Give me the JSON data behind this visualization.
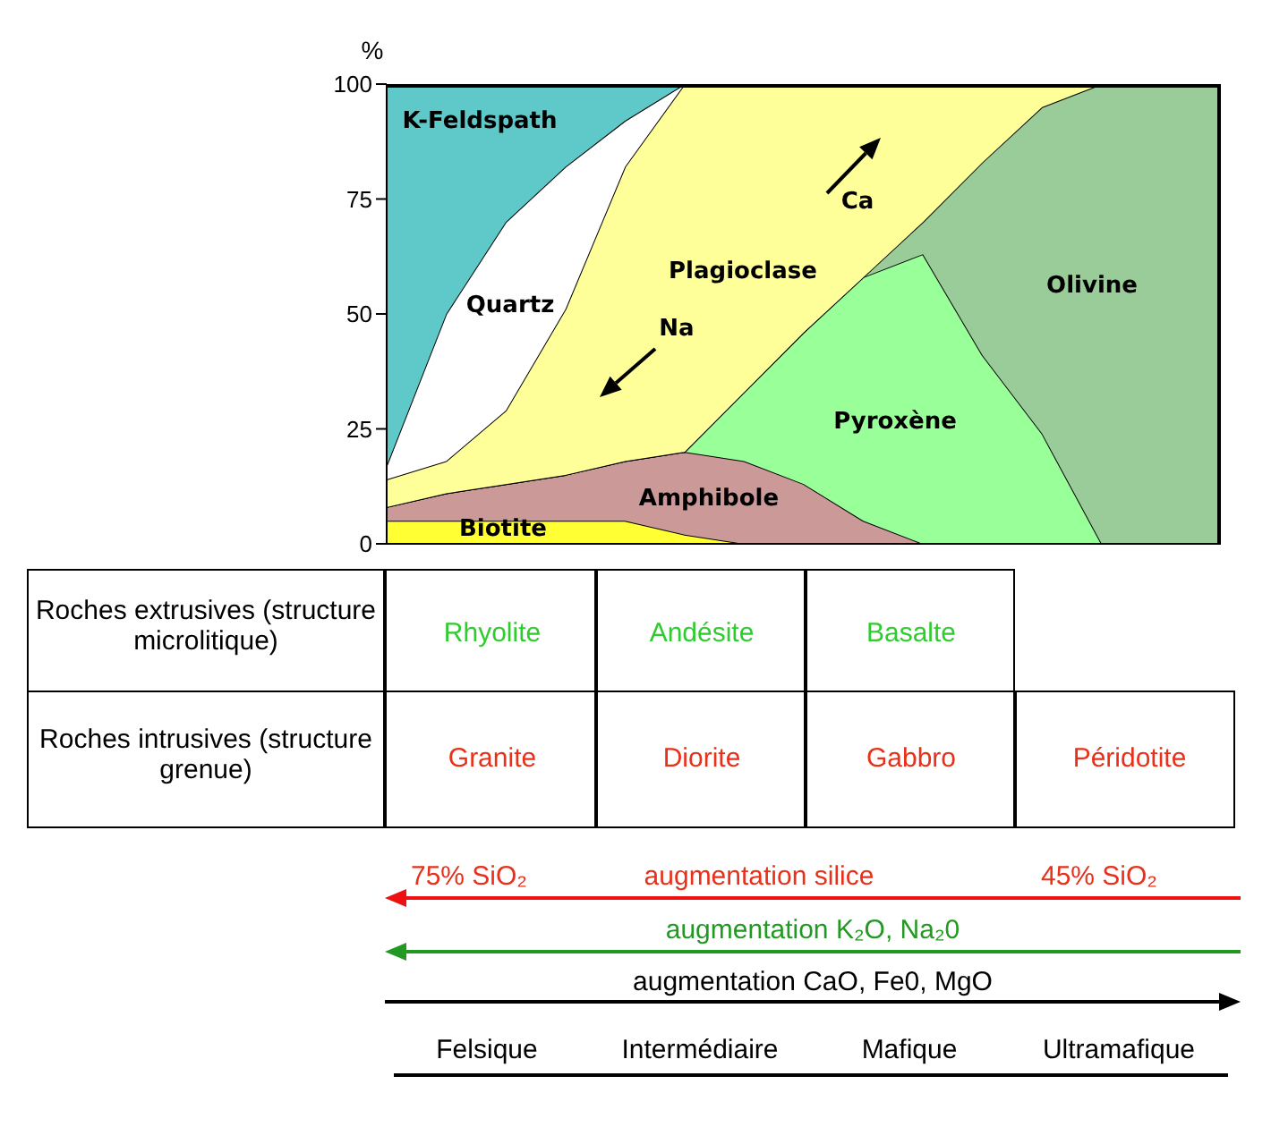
{
  "chart_data": {
    "type": "area",
    "stacked": true,
    "ylabel": "%",
    "ylim": [
      0,
      100
    ],
    "yticks": [
      0,
      25,
      50,
      75,
      100
    ],
    "categories": [
      null,
      null,
      null,
      null,
      null,
      null,
      null,
      null,
      null,
      null,
      null,
      null,
      null,
      null,
      null
    ],
    "series": [
      {
        "name": "Biotite",
        "color": "#ffff33",
        "values": [
          5,
          5,
          5,
          5,
          5,
          2,
          0,
          0,
          0,
          0,
          0,
          0,
          0,
          0,
          0
        ]
      },
      {
        "name": "Amphibole",
        "color": "#cc9999",
        "values": [
          3,
          6,
          8,
          10,
          13,
          18,
          18,
          13,
          5,
          0,
          0,
          0,
          0,
          0,
          0
        ]
      },
      {
        "name": "Pyroxène",
        "color": "#99ff99",
        "values": [
          0,
          0,
          0,
          0,
          0,
          0,
          15,
          33,
          53,
          63,
          41,
          24,
          0,
          0,
          0
        ]
      },
      {
        "name": "Olivine",
        "color": "#99cc99",
        "values": [
          0,
          0,
          0,
          0,
          0,
          0,
          0,
          0,
          0,
          7,
          42,
          71,
          100,
          100,
          100
        ]
      },
      {
        "name": "Plagioclase",
        "color": "#ffff99",
        "values": [
          6,
          7,
          16,
          36,
          64,
          80,
          67,
          54,
          42,
          30,
          17,
          5,
          0,
          0,
          0
        ]
      },
      {
        "name": "Quartz",
        "color": "#ffffff",
        "values": [
          3,
          32,
          41,
          31,
          10,
          0,
          0,
          0,
          0,
          0,
          0,
          0,
          0,
          0,
          0
        ]
      },
      {
        "name": "K-Feldspath",
        "color": "#5fc8c8",
        "values": [
          83,
          50,
          30,
          18,
          8,
          0,
          0,
          0,
          0,
          0,
          0,
          0,
          0,
          0,
          0
        ]
      }
    ],
    "annotations": [
      "Ca",
      "Na",
      "Roches extrusives (structure microlitique)",
      "Rhyolite",
      "Andésite",
      "Basalte",
      "Roches intrusives (structure grenue)",
      "Granite",
      "Diorite",
      "Gabbro",
      "Péridotite",
      "75% SiO₂",
      "augmentation silice",
      "45% SiO₂",
      "augmentation K₂O, Na₂0",
      "augmentation CaO, Fe0, MgO",
      "Felsique",
      "Intermédiaire",
      "Mafique",
      "Ultramafique"
    ]
  }
}
